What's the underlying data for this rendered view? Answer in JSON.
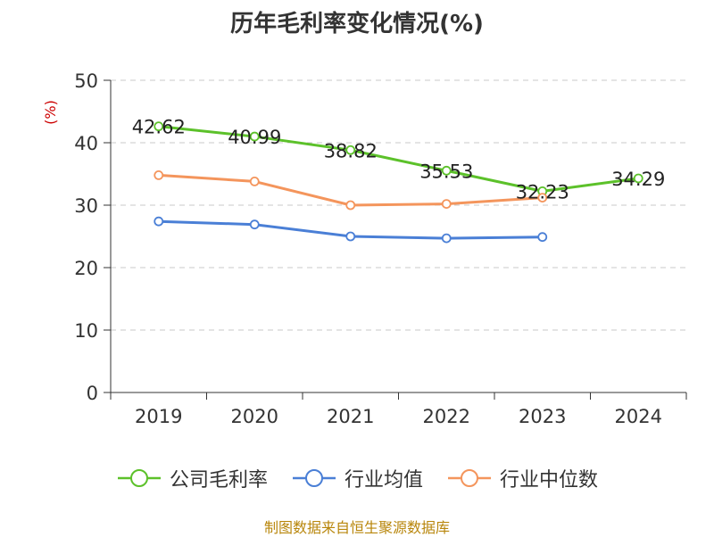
{
  "chart_data": {
    "type": "line",
    "title": "历年毛利率变化情况(%)",
    "ylabel": "(%)",
    "ylim": [
      0,
      50
    ],
    "yticks": [
      0,
      10,
      20,
      30,
      40,
      50
    ],
    "categories": [
      "2019",
      "2020",
      "2021",
      "2022",
      "2023",
      "2024"
    ],
    "series": [
      {
        "name": "公司毛利率",
        "color": "#5cc12a",
        "values": [
          42.62,
          40.99,
          38.82,
          35.53,
          32.23,
          34.29
        ],
        "show_labels": true
      },
      {
        "name": "行业均值",
        "color": "#4a7fd6",
        "values": [
          27.4,
          26.9,
          25.0,
          24.7,
          24.9,
          null
        ],
        "show_labels": false
      },
      {
        "name": "行业中位数",
        "color": "#f4955c",
        "values": [
          34.8,
          33.8,
          30.0,
          30.2,
          31.2,
          null
        ],
        "show_labels": false
      }
    ],
    "grid": true,
    "legend_position": "bottom"
  },
  "source_text": "制图数据来自恒生聚源数据库"
}
